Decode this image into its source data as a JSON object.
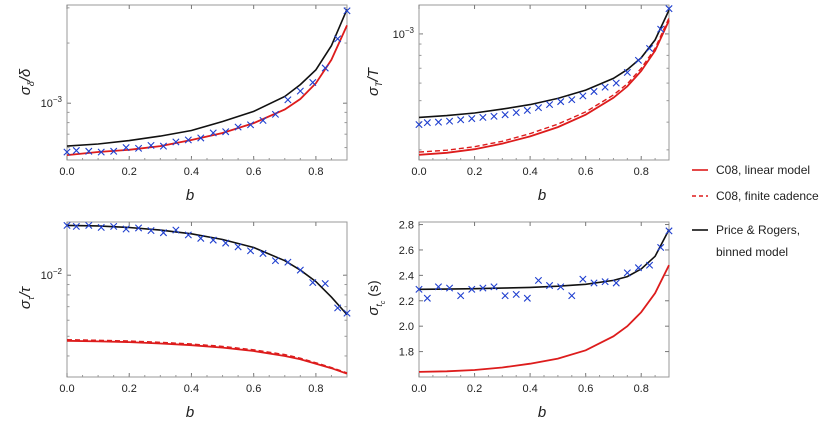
{
  "colors": {
    "linear_model": "#dd1c1c",
    "finite_cadence": "#dd1c1c",
    "binned_model": "#111111",
    "measured": "#1f3fcf"
  },
  "legend": {
    "placement": "right",
    "items": [
      {
        "label": "C08, linear model",
        "style": "solid",
        "color": "#dd1c1c"
      },
      {
        "label": "C08, finite cadence",
        "style": "dashed",
        "color": "#dd1c1c"
      },
      {
        "label": "Price & Rogers,",
        "label2": "binned model",
        "style": "solid",
        "color": "#111111"
      }
    ]
  },
  "chart_data": [
    {
      "type": "line",
      "panel": "top-left",
      "xlabel": "b",
      "ylabel_html": "σ_δ/δ",
      "xlim": [
        0,
        0.9
      ],
      "ylog": true,
      "ylim": [
        0.00052,
        0.0031
      ],
      "xticks": [
        0.0,
        0.2,
        0.4,
        0.6,
        0.8
      ],
      "yticks": [
        {
          "value": 0.001,
          "label": "10^-3"
        }
      ],
      "grid": false,
      "series": [
        {
          "key": "linear",
          "x": [
            0,
            0.1,
            0.2,
            0.3,
            0.4,
            0.5,
            0.6,
            0.7,
            0.75,
            0.8,
            0.85,
            0.9
          ],
          "y": [
            0.00055,
            0.00057,
            0.000585,
            0.00061,
            0.000655,
            0.00071,
            0.000795,
            0.00093,
            0.00105,
            0.00126,
            0.00165,
            0.00245
          ]
        },
        {
          "key": "binned",
          "x": [
            0,
            0.1,
            0.2,
            0.3,
            0.4,
            0.5,
            0.6,
            0.7,
            0.75,
            0.8,
            0.85,
            0.9
          ],
          "y": [
            0.00061,
            0.000625,
            0.00065,
            0.000685,
            0.00073,
            0.00081,
            0.00091,
            0.00108,
            0.00124,
            0.00147,
            0.00194,
            0.00295
          ]
        },
        {
          "key": "measured",
          "x": [
            0.0,
            0.03,
            0.07,
            0.11,
            0.15,
            0.19,
            0.23,
            0.27,
            0.31,
            0.35,
            0.39,
            0.43,
            0.47,
            0.51,
            0.55,
            0.59,
            0.63,
            0.67,
            0.71,
            0.75,
            0.79,
            0.83,
            0.87,
            0.9
          ],
          "y": [
            0.00057,
            0.00058,
            0.000575,
            0.00057,
            0.000575,
            0.0006,
            0.000595,
            0.000615,
            0.00061,
            0.00064,
            0.000655,
            0.00067,
            0.00071,
            0.00072,
            0.00076,
            0.00078,
            0.00082,
            0.00088,
            0.00104,
            0.00115,
            0.00127,
            0.0015,
            0.0021,
            0.0029
          ]
        }
      ]
    },
    {
      "type": "line",
      "panel": "top-right",
      "xlabel": "b",
      "ylabel_html": "σ_T/T",
      "xlim": [
        0,
        0.9
      ],
      "ylog": true,
      "ylim": [
        0.00027,
        0.00135
      ],
      "xticks": [
        0.0,
        0.2,
        0.4,
        0.6,
        0.8
      ],
      "yticks": [
        {
          "value": 0.001,
          "label": "10^-3"
        }
      ],
      "grid": false,
      "series": [
        {
          "key": "linear",
          "x": [
            0,
            0.1,
            0.2,
            0.3,
            0.4,
            0.5,
            0.6,
            0.7,
            0.75,
            0.8,
            0.85,
            0.9
          ],
          "y": [
            0.000285,
            0.000291,
            0.000302,
            0.00032,
            0.000345,
            0.00038,
            0.000432,
            0.000515,
            0.00058,
            0.00068,
            0.00084,
            0.00115
          ]
        },
        {
          "key": "finite",
          "x": [
            0,
            0.1,
            0.2,
            0.3,
            0.4,
            0.5,
            0.6,
            0.7,
            0.75,
            0.8,
            0.85,
            0.9
          ],
          "y": [
            0.000293,
            0.000299,
            0.00031,
            0.000328,
            0.000355,
            0.000392,
            0.000445,
            0.00053,
            0.000595,
            0.0007,
            0.00086,
            0.00118
          ]
        },
        {
          "key": "binned",
          "x": [
            0,
            0.1,
            0.2,
            0.3,
            0.4,
            0.5,
            0.6,
            0.7,
            0.75,
            0.8,
            0.85,
            0.9
          ],
          "y": [
            0.00042,
            0.000428,
            0.00044,
            0.000458,
            0.00048,
            0.000512,
            0.000558,
            0.00063,
            0.00069,
            0.00078,
            0.00094,
            0.00128
          ]
        },
        {
          "key": "measured",
          "x": [
            0.0,
            0.03,
            0.07,
            0.11,
            0.15,
            0.19,
            0.23,
            0.27,
            0.31,
            0.35,
            0.39,
            0.43,
            0.47,
            0.51,
            0.55,
            0.59,
            0.63,
            0.67,
            0.71,
            0.75,
            0.79,
            0.83,
            0.87,
            0.9
          ],
          "y": [
            0.00039,
            0.000398,
            0.0004,
            0.000404,
            0.00041,
            0.000415,
            0.00042,
            0.000425,
            0.000432,
            0.000442,
            0.000452,
            0.000465,
            0.00048,
            0.000495,
            0.000505,
            0.000525,
            0.00055,
            0.000575,
            0.0006,
            0.00067,
            0.00076,
            0.00086,
            0.00105,
            0.0013
          ]
        }
      ]
    },
    {
      "type": "line",
      "panel": "bottom-left",
      "xlabel": "b",
      "ylabel_html": "σ_τ/τ",
      "xlim": [
        0,
        0.9
      ],
      "ylog": true,
      "ylim": [
        0.00315,
        0.0183
      ],
      "xticks": [
        0.0,
        0.2,
        0.4,
        0.6,
        0.8
      ],
      "yticks": [
        {
          "value": 0.01,
          "label": "10^-2"
        }
      ],
      "grid": false,
      "series": [
        {
          "key": "linear",
          "x": [
            0,
            0.1,
            0.2,
            0.3,
            0.4,
            0.5,
            0.6,
            0.7,
            0.75,
            0.8,
            0.85,
            0.9
          ],
          "y": [
            0.00475,
            0.00472,
            0.00468,
            0.00461,
            0.00452,
            0.0044,
            0.00423,
            0.004,
            0.00385,
            0.00366,
            0.00348,
            0.00327
          ]
        },
        {
          "key": "finite",
          "x": [
            0,
            0.1,
            0.2,
            0.3,
            0.4,
            0.5,
            0.6,
            0.7,
            0.75,
            0.8,
            0.85,
            0.9
          ],
          "y": [
            0.00481,
            0.00478,
            0.00474,
            0.00467,
            0.00458,
            0.00446,
            0.00429,
            0.00406,
            0.0039,
            0.0037,
            0.00351,
            0.0033
          ]
        },
        {
          "key": "binned",
          "x": [
            0,
            0.1,
            0.2,
            0.3,
            0.4,
            0.5,
            0.6,
            0.7,
            0.75,
            0.8,
            0.85,
            0.9
          ],
          "y": [
            0.0176,
            0.0175,
            0.0172,
            0.0167,
            0.016,
            0.015,
            0.0137,
            0.0118,
            0.0106,
            0.0093,
            0.0078,
            0.0064
          ]
        },
        {
          "key": "measured",
          "x": [
            0.0,
            0.03,
            0.07,
            0.11,
            0.15,
            0.19,
            0.23,
            0.27,
            0.31,
            0.35,
            0.39,
            0.43,
            0.47,
            0.51,
            0.55,
            0.59,
            0.63,
            0.67,
            0.71,
            0.75,
            0.79,
            0.83,
            0.87,
            0.9
          ],
          "y": [
            0.0176,
            0.0174,
            0.0176,
            0.0172,
            0.0174,
            0.0169,
            0.0171,
            0.0166,
            0.0162,
            0.0167,
            0.0158,
            0.0152,
            0.0149,
            0.0144,
            0.0138,
            0.0132,
            0.0128,
            0.0118,
            0.0116,
            0.0106,
            0.0092,
            0.0091,
            0.0069,
            0.0065
          ]
        }
      ]
    },
    {
      "type": "line",
      "panel": "bottom-right",
      "xlabel": "b",
      "ylabel_html": "σ_t_c (s)",
      "xlim": [
        0,
        0.9
      ],
      "ylog": false,
      "ylim": [
        1.6,
        2.82
      ],
      "xticks": [
        0.0,
        0.2,
        0.4,
        0.6,
        0.8
      ],
      "yticks": [
        {
          "value": 1.8,
          "label": "1.8"
        },
        {
          "value": 2.0,
          "label": "2.0"
        },
        {
          "value": 2.2,
          "label": "2.2"
        },
        {
          "value": 2.4,
          "label": "2.4"
        },
        {
          "value": 2.6,
          "label": "2.6"
        },
        {
          "value": 2.8,
          "label": "2.8"
        }
      ],
      "grid": false,
      "series": [
        {
          "key": "linear",
          "x": [
            0,
            0.1,
            0.2,
            0.3,
            0.4,
            0.5,
            0.6,
            0.7,
            0.75,
            0.8,
            0.85,
            0.9
          ],
          "y": [
            1.64,
            1.645,
            1.655,
            1.675,
            1.705,
            1.745,
            1.81,
            1.92,
            2.0,
            2.11,
            2.26,
            2.48
          ]
        },
        {
          "key": "binned",
          "x": [
            0,
            0.1,
            0.2,
            0.3,
            0.4,
            0.5,
            0.6,
            0.7,
            0.75,
            0.8,
            0.85,
            0.9
          ],
          "y": [
            2.29,
            2.292,
            2.295,
            2.3,
            2.305,
            2.315,
            2.33,
            2.36,
            2.39,
            2.45,
            2.55,
            2.76
          ]
        },
        {
          "key": "measured",
          "x": [
            0.0,
            0.03,
            0.07,
            0.11,
            0.15,
            0.19,
            0.23,
            0.27,
            0.31,
            0.35,
            0.39,
            0.43,
            0.47,
            0.51,
            0.55,
            0.59,
            0.63,
            0.67,
            0.71,
            0.75,
            0.79,
            0.83,
            0.87,
            0.9
          ],
          "y": [
            2.29,
            2.22,
            2.31,
            2.3,
            2.24,
            2.29,
            2.3,
            2.31,
            2.24,
            2.25,
            2.22,
            2.36,
            2.32,
            2.31,
            2.24,
            2.37,
            2.34,
            2.35,
            2.34,
            2.42,
            2.46,
            2.48,
            2.62,
            2.75
          ]
        }
      ]
    }
  ]
}
